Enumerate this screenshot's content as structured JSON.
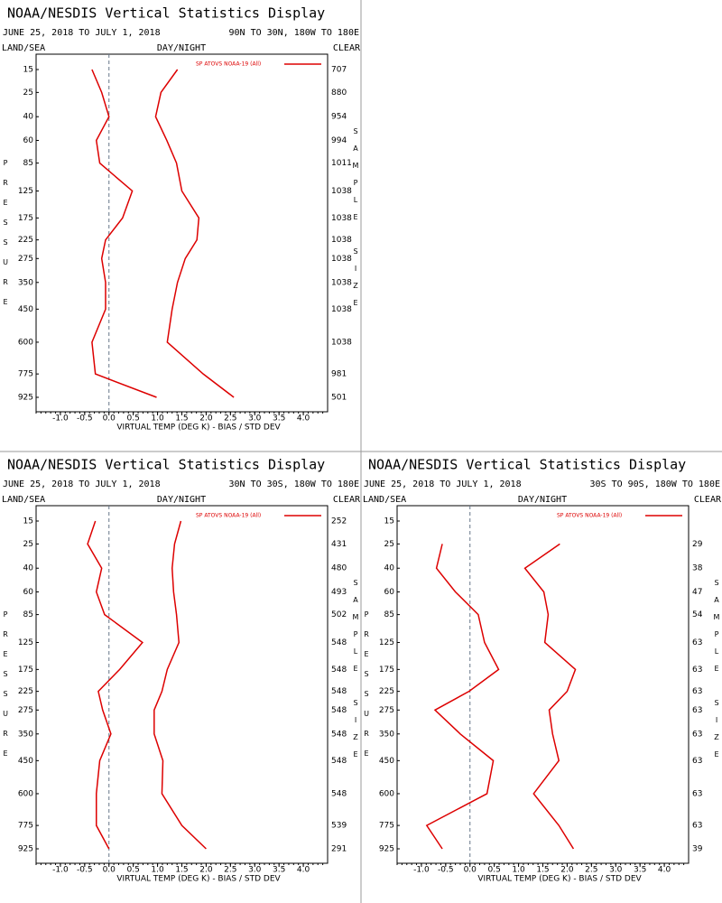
{
  "chart_data": [
    {
      "type": "line",
      "title": "NOAA/NESDIS Vertical Statistics Display",
      "subtitle": "JUNE 25, 2018 TO JULY 1, 2018",
      "region": "90N TO 30N, 180W TO 180E",
      "left_label": "LAND/SEA",
      "center_label": "DAY/NIGHT",
      "right_label": "CLEAR",
      "ylabel": "PRESSURE",
      "y2label": "SAMPLE SIZE",
      "xlabel": "VIRTUAL TEMP (DEG K) - BIAS / STD DEV",
      "y": [
        15,
        25,
        40,
        60,
        85,
        125,
        175,
        225,
        275,
        350,
        450,
        600,
        775,
        925
      ],
      "ylim": [
        15,
        925
      ],
      "yticks": [
        15,
        25,
        40,
        60,
        85,
        125,
        175,
        225,
        275,
        350,
        450,
        600,
        775,
        925
      ],
      "xlim": [
        -1.5,
        4.5
      ],
      "xticks": [
        {
          "value": -1,
          "label": "-1.0"
        },
        {
          "value": -0.5,
          "label": "-0.5"
        },
        {
          "value": 0,
          "label": "0.0"
        },
        {
          "value": 0.5,
          "label": "0.5"
        },
        {
          "value": 1,
          "label": "1.0"
        },
        {
          "value": 1.5,
          "label": "1.5"
        },
        {
          "value": 2,
          "label": "2.0"
        },
        {
          "value": 2.5,
          "label": "2.5"
        },
        {
          "value": 3,
          "label": "3.0"
        },
        {
          "value": 3.5,
          "label": "3.5"
        },
        {
          "value": 4,
          "label": "4.0"
        }
      ],
      "series": [
        {
          "name": "SP ATOVS NOAA-19 (All)",
          "color": "#dd0000",
          "values": [
            -0.35,
            -0.15,
            0.0,
            -0.26,
            -0.19,
            0.48,
            0.28,
            -0.07,
            -0.15,
            -0.07,
            -0.07,
            -0.35,
            -0.28,
            0.98
          ],
          "std_dev": [
            1.41,
            1.07,
            0.96,
            1.19,
            1.39,
            1.5,
            1.85,
            1.81,
            1.57,
            1.41,
            1.3,
            1.2,
            1.94,
            2.57
          ]
        }
      ],
      "sample_size": [
        707,
        880,
        954,
        994,
        1011,
        1038,
        1038,
        1038,
        1038,
        1038,
        1038,
        1038,
        981,
        501
      ]
    },
    {
      "type": "line",
      "title": "NOAA/NESDIS Vertical Statistics Display",
      "subtitle": "JUNE 25, 2018 TO JULY 1, 2018",
      "region": "30N TO 30S, 180W TO 180E",
      "left_label": "LAND/SEA",
      "center_label": "DAY/NIGHT",
      "right_label": "CLEAR",
      "ylabel": "PRESSURE",
      "y2label": "SAMPLE SIZE",
      "xlabel": "VIRTUAL TEMP (DEG K) - BIAS / STD DEV",
      "y": [
        15,
        25,
        40,
        60,
        85,
        125,
        175,
        225,
        275,
        350,
        450,
        600,
        775,
        925
      ],
      "ylim": [
        15,
        925
      ],
      "yticks": [
        15,
        25,
        40,
        60,
        85,
        125,
        175,
        225,
        275,
        350,
        450,
        600,
        775,
        925
      ],
      "xlim": [
        -1.5,
        4.5
      ],
      "xticks": [
        {
          "value": -1,
          "label": "-1.0"
        },
        {
          "value": -0.5,
          "label": "-0.5"
        },
        {
          "value": 0,
          "label": "0.0"
        },
        {
          "value": 0.5,
          "label": "0.5"
        },
        {
          "value": 1,
          "label": "1.0"
        },
        {
          "value": 1.5,
          "label": "1.5"
        },
        {
          "value": 2,
          "label": "2.0"
        },
        {
          "value": 2.5,
          "label": "2.5"
        },
        {
          "value": 3,
          "label": "3.0"
        },
        {
          "value": 3.5,
          "label": "3.5"
        },
        {
          "value": 4,
          "label": "4.0"
        }
      ],
      "series": [
        {
          "name": "SP ATOVS NOAA-19 (All)",
          "color": "#dd0000",
          "values": [
            -0.28,
            -0.44,
            -0.15,
            -0.26,
            -0.09,
            0.69,
            0.22,
            -0.22,
            -0.13,
            0.04,
            -0.19,
            -0.26,
            -0.26,
            0.0
          ],
          "std_dev": [
            1.48,
            1.35,
            1.3,
            1.33,
            1.39,
            1.44,
            1.2,
            1.09,
            0.93,
            0.93,
            1.11,
            1.09,
            1.5,
            2.0
          ]
        }
      ],
      "sample_size": [
        252,
        431,
        480,
        493,
        502,
        548,
        548,
        548,
        548,
        548,
        548,
        548,
        539,
        291
      ]
    },
    {
      "type": "line",
      "title": "NOAA/NESDIS Vertical Statistics Display",
      "subtitle": "JUNE 25, 2018 TO JULY 1, 2018",
      "region": "30S TO 90S, 180W TO 180E",
      "left_label": "LAND/SEA",
      "center_label": "DAY/NIGHT",
      "right_label": "CLEAR",
      "ylabel": "PRESSURE",
      "y2label": "SAMPLE SIZE",
      "xlabel": "VIRTUAL TEMP (DEG K) - BIAS / STD DEV",
      "y": [
        15,
        25,
        40,
        60,
        85,
        125,
        175,
        225,
        275,
        350,
        450,
        600,
        775,
        925
      ],
      "ylim": [
        15,
        925
      ],
      "yticks": [
        15,
        25,
        40,
        60,
        85,
        125,
        175,
        225,
        275,
        350,
        450,
        600,
        775,
        925
      ],
      "xlim": [
        -1.5,
        4.5
      ],
      "xticks": [
        {
          "value": -1,
          "label": "-1.0"
        },
        {
          "value": -0.5,
          "label": "-0.5"
        },
        {
          "value": 0,
          "label": "0.0"
        },
        {
          "value": 0.5,
          "label": "0.5"
        },
        {
          "value": 1,
          "label": "1.0"
        },
        {
          "value": 1.5,
          "label": "1.5"
        },
        {
          "value": 2,
          "label": "2.0"
        },
        {
          "value": 2.5,
          "label": "2.5"
        },
        {
          "value": 3,
          "label": "3.0"
        },
        {
          "value": 3.5,
          "label": "3.5"
        },
        {
          "value": 4,
          "label": "4.0"
        }
      ],
      "series": [
        {
          "name": "SP ATOVS NOAA-19 (All)",
          "color": "#dd0000",
          "values": [
            null,
            -0.57,
            -0.69,
            -0.3,
            0.17,
            0.3,
            0.59,
            -0.02,
            -0.72,
            -0.2,
            0.48,
            0.35,
            -0.89,
            -0.57
          ],
          "std_dev": [
            null,
            1.85,
            1.13,
            1.52,
            1.61,
            1.54,
            2.17,
            2.0,
            1.63,
            1.7,
            1.83,
            1.31,
            1.83,
            2.13
          ]
        }
      ],
      "sample_size": [
        null,
        29,
        38,
        47,
        54,
        63,
        63,
        63,
        63,
        63,
        63,
        63,
        63,
        39
      ]
    }
  ]
}
